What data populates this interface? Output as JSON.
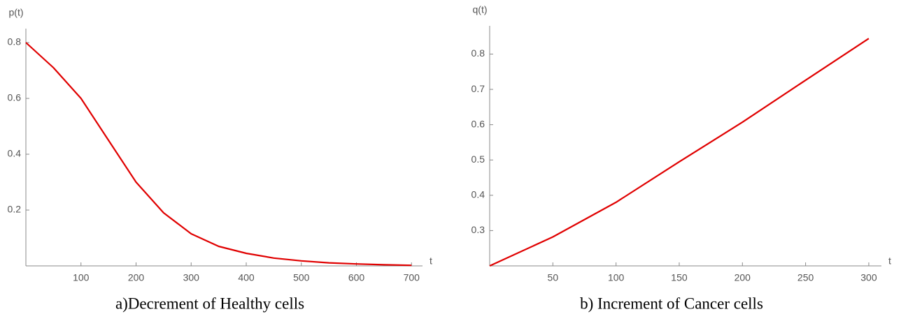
{
  "chart_data": [
    {
      "type": "line",
      "caption": "a)Decrement of Healthy cells",
      "ylabel": "p(t)",
      "xlabel": "t",
      "x": [
        0,
        50,
        100,
        150,
        200,
        250,
        300,
        350,
        400,
        450,
        500,
        550,
        600,
        650,
        700
      ],
      "values": [
        0.8,
        0.71,
        0.6,
        0.45,
        0.3,
        0.19,
        0.115,
        0.07,
        0.045,
        0.028,
        0.018,
        0.011,
        0.007,
        0.004,
        0.002
      ],
      "color": "#e00000",
      "xlim": [
        0,
        720
      ],
      "ylim": [
        0,
        0.85
      ],
      "xticks": [
        100,
        200,
        300,
        400,
        500,
        600,
        700
      ],
      "yticks": [
        0.2,
        0.4,
        0.6,
        0.8
      ]
    },
    {
      "type": "line",
      "caption": "b) Increment of Cancer cells",
      "ylabel": "q(t)",
      "xlabel": "t",
      "x": [
        0,
        50,
        100,
        150,
        200,
        250,
        300
      ],
      "values": [
        0.2,
        0.282,
        0.38,
        0.495,
        0.607,
        0.726,
        0.844
      ],
      "color": "#e00000",
      "xlim": [
        0,
        310
      ],
      "ylim": [
        0.2,
        0.88
      ],
      "xticks": [
        50,
        100,
        150,
        200,
        250,
        300
      ],
      "yticks": [
        0.3,
        0.4,
        0.5,
        0.6,
        0.7,
        0.8
      ]
    }
  ]
}
